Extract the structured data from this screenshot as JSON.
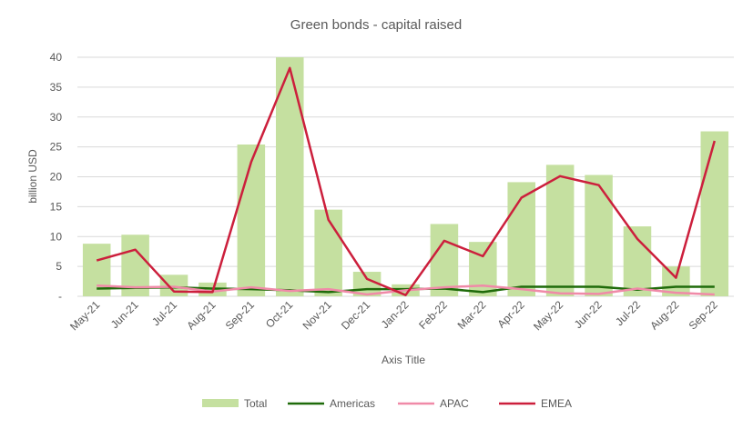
{
  "chart_data": {
    "type": "bar",
    "title": "Green bonds - capital raised",
    "xlabel": "Axis Title",
    "ylabel": "billion USD",
    "ylim": [
      0,
      40
    ],
    "yticks": [
      0,
      5,
      10,
      15,
      20,
      25,
      30,
      35,
      40
    ],
    "ytick_labels": [
      "-",
      "5",
      "10",
      "15",
      "20",
      "25",
      "30",
      "35",
      "40"
    ],
    "grid": true,
    "legend_position": "bottom",
    "categories": [
      "May-21",
      "Jun-21",
      "Jul-21",
      "Aug-21",
      "Sep-21",
      "Oct-21",
      "Nov-21",
      "Dec-21",
      "Jan-22",
      "Feb-22",
      "Mar-22",
      "Apr-22",
      "May-22",
      "Jun-22",
      "Jul-22",
      "Aug-22",
      "Sep-22"
    ],
    "series": [
      {
        "name": "Total",
        "type": "bar",
        "color": "#c5e0a0",
        "values": [
          8.8,
          10.3,
          3.6,
          2.3,
          25.4,
          40.0,
          14.5,
          4.1,
          2.0,
          12.1,
          9.1,
          19.1,
          22.0,
          20.3,
          11.7,
          5.0,
          27.6
        ]
      },
      {
        "name": "Americas",
        "type": "line",
        "color": "#1f6b0a",
        "values": [
          1.3,
          1.4,
          1.5,
          1.3,
          1.2,
          1.0,
          0.7,
          1.2,
          1.2,
          1.3,
          0.7,
          1.6,
          1.6,
          1.6,
          1.1,
          1.6,
          1.6
        ]
      },
      {
        "name": "APAC",
        "type": "line",
        "color": "#f08aa8",
        "values": [
          1.8,
          1.5,
          1.6,
          0.8,
          1.5,
          0.9,
          1.2,
          0.3,
          1.0,
          1.5,
          1.8,
          1.2,
          0.5,
          0.4,
          1.3,
          0.6,
          0.3
        ]
      },
      {
        "name": "EMEA",
        "type": "line",
        "color": "#cc1f3c",
        "values": [
          6.0,
          7.8,
          0.8,
          0.7,
          22.5,
          38.2,
          12.8,
          2.9,
          0.2,
          9.3,
          6.7,
          16.5,
          20.1,
          18.6,
          9.6,
          3.1,
          26.0
        ]
      }
    ]
  }
}
